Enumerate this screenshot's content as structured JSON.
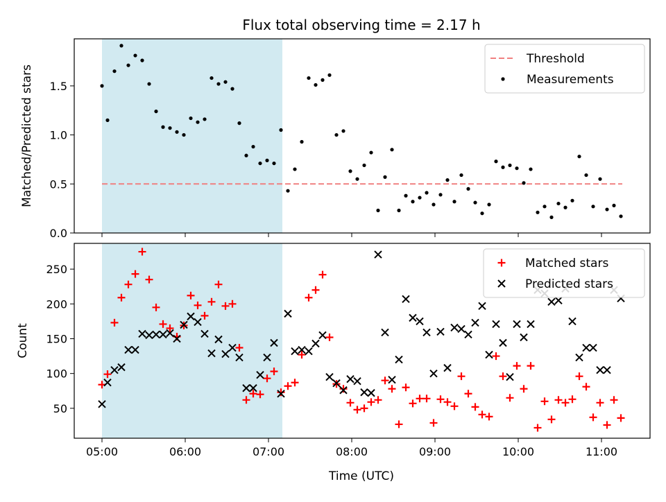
{
  "chart_data": {
    "title": "Flux total observing time = 2.17 h",
    "x_range": [
      "04:40",
      "11:35"
    ],
    "x_ticks": [
      "05:00",
      "06:00",
      "07:00",
      "08:00",
      "09:00",
      "10:00",
      "11:00"
    ],
    "xlabel": "Time (UTC)",
    "shaded_span": {
      "start": "05:00",
      "end": "07:10",
      "color": "#add8e6"
    },
    "panels": [
      {
        "type": "scatter",
        "ylabel": "Matched/Predicted stars",
        "ylim": [
          0,
          1.98
        ],
        "y_ticks": [
          "0.0",
          "0.5",
          "1.0",
          "1.5"
        ],
        "legend": {
          "placement": "top-right",
          "entries": [
            "Threshold",
            "Measurements"
          ]
        },
        "threshold": {
          "name": "Threshold",
          "value": 0.5,
          "x_start": "05:00",
          "x_end": "11:15",
          "color": "#f08080"
        },
        "series": [
          {
            "name": "Measurements",
            "color": "#000000",
            "marker": "dot",
            "points": [
              [
                "05:00",
                1.5
              ],
              [
                "05:04",
                1.15
              ],
              [
                "05:09",
                1.65
              ],
              [
                "05:14",
                1.91
              ],
              [
                "05:19",
                1.71
              ],
              [
                "05:24",
                1.81
              ],
              [
                "05:29",
                1.76
              ],
              [
                "05:34",
                1.52
              ],
              [
                "05:39",
                1.24
              ],
              [
                "05:44",
                1.08
              ],
              [
                "05:49",
                1.07
              ],
              [
                "05:54",
                1.03
              ],
              [
                "05:59",
                1.0
              ],
              [
                "06:04",
                1.17
              ],
              [
                "06:09",
                1.13
              ],
              [
                "06:14",
                1.16
              ],
              [
                "06:19",
                1.58
              ],
              [
                "06:24",
                1.52
              ],
              [
                "06:29",
                1.54
              ],
              [
                "06:34",
                1.47
              ],
              [
                "06:39",
                1.12
              ],
              [
                "06:44",
                0.79
              ],
              [
                "06:49",
                0.88
              ],
              [
                "06:54",
                0.71
              ],
              [
                "06:59",
                0.74
              ],
              [
                "07:04",
                0.71
              ],
              [
                "07:09",
                1.05
              ],
              [
                "07:14",
                0.43
              ],
              [
                "07:19",
                0.65
              ],
              [
                "07:24",
                0.93
              ],
              [
                "07:29",
                1.58
              ],
              [
                "07:34",
                1.51
              ],
              [
                "07:39",
                1.56
              ],
              [
                "07:44",
                1.61
              ],
              [
                "07:49",
                1.0
              ],
              [
                "07:54",
                1.04
              ],
              [
                "07:59",
                0.63
              ],
              [
                "08:04",
                0.55
              ],
              [
                "08:09",
                0.69
              ],
              [
                "08:14",
                0.82
              ],
              [
                "08:19",
                0.23
              ],
              [
                "08:24",
                0.57
              ],
              [
                "08:29",
                0.85
              ],
              [
                "08:34",
                0.23
              ],
              [
                "08:39",
                0.38
              ],
              [
                "08:44",
                0.32
              ],
              [
                "08:49",
                0.36
              ],
              [
                "08:54",
                0.41
              ],
              [
                "08:59",
                0.29
              ],
              [
                "09:04",
                0.39
              ],
              [
                "09:09",
                0.54
              ],
              [
                "09:14",
                0.32
              ],
              [
                "09:19",
                0.59
              ],
              [
                "09:24",
                0.45
              ],
              [
                "09:29",
                0.31
              ],
              [
                "09:34",
                0.2
              ],
              [
                "09:39",
                0.29
              ],
              [
                "09:44",
                0.73
              ],
              [
                "09:49",
                0.67
              ],
              [
                "09:54",
                0.69
              ],
              [
                "09:59",
                0.66
              ],
              [
                "10:04",
                0.51
              ],
              [
                "10:09",
                0.65
              ],
              [
                "10:14",
                0.21
              ],
              [
                "10:19",
                0.27
              ],
              [
                "10:24",
                0.16
              ],
              [
                "10:29",
                0.3
              ],
              [
                "10:34",
                0.26
              ],
              [
                "10:39",
                0.33
              ],
              [
                "10:44",
                0.78
              ],
              [
                "10:49",
                0.59
              ],
              [
                "10:54",
                0.27
              ],
              [
                "10:59",
                0.55
              ],
              [
                "11:04",
                0.24
              ],
              [
                "11:09",
                0.28
              ],
              [
                "11:14",
                0.17
              ]
            ]
          }
        ]
      },
      {
        "type": "scatter",
        "ylabel": "Count",
        "ylim": [
          7,
          287
        ],
        "y_ticks": [
          "50",
          "100",
          "150",
          "200",
          "250"
        ],
        "legend": {
          "placement": "top-right",
          "entries": [
            "Matched stars",
            "Predicted stars"
          ]
        },
        "series": [
          {
            "name": "Matched stars",
            "color": "#ff0000",
            "marker": "plus",
            "points": [
              [
                "05:00",
                84
              ],
              [
                "05:04",
                99
              ],
              [
                "05:09",
                173
              ],
              [
                "05:14",
                209
              ],
              [
                "05:19",
                228
              ],
              [
                "05:24",
                243
              ],
              [
                "05:29",
                275
              ],
              [
                "05:34",
                235
              ],
              [
                "05:39",
                195
              ],
              [
                "05:44",
                171
              ],
              [
                "05:49",
                165
              ],
              [
                "05:54",
                153
              ],
              [
                "05:59",
                169
              ],
              [
                "06:04",
                212
              ],
              [
                "06:09",
                198
              ],
              [
                "06:14",
                183
              ],
              [
                "06:19",
                203
              ],
              [
                "06:24",
                228
              ],
              [
                "06:29",
                197
              ],
              [
                "06:34",
                200
              ],
              [
                "06:39",
                137
              ],
              [
                "06:44",
                62
              ],
              [
                "06:49",
                71
              ],
              [
                "06:54",
                70
              ],
              [
                "06:59",
                93
              ],
              [
                "07:04",
                103
              ],
              [
                "07:09",
                73
              ],
              [
                "07:14",
                82
              ],
              [
                "07:19",
                87
              ],
              [
                "07:24",
                127
              ],
              [
                "07:29",
                209
              ],
              [
                "07:34",
                220
              ],
              [
                "07:39",
                242
              ],
              [
                "07:44",
                152
              ],
              [
                "07:49",
                85
              ],
              [
                "07:54",
                78
              ],
              [
                "07:59",
                58
              ],
              [
                "08:04",
                48
              ],
              [
                "08:09",
                50
              ],
              [
                "08:14",
                59
              ],
              [
                "08:19",
                62
              ],
              [
                "08:24",
                90
              ],
              [
                "08:29",
                78
              ],
              [
                "08:34",
                27
              ],
              [
                "08:39",
                80
              ],
              [
                "08:44",
                57
              ],
              [
                "08:49",
                64
              ],
              [
                "08:54",
                64
              ],
              [
                "08:59",
                29
              ],
              [
                "09:04",
                63
              ],
              [
                "09:09",
                59
              ],
              [
                "09:14",
                53
              ],
              [
                "09:19",
                96
              ],
              [
                "09:24",
                71
              ],
              [
                "09:29",
                52
              ],
              [
                "09:34",
                41
              ],
              [
                "09:39",
                38
              ],
              [
                "09:44",
                125
              ],
              [
                "09:49",
                96
              ],
              [
                "09:54",
                65
              ],
              [
                "09:59",
                111
              ],
              [
                "10:04",
                78
              ],
              [
                "10:09",
                111
              ],
              [
                "10:14",
                22
              ],
              [
                "10:19",
                60
              ],
              [
                "10:24",
                34
              ],
              [
                "10:29",
                62
              ],
              [
                "10:34",
                58
              ],
              [
                "10:39",
                63
              ],
              [
                "10:44",
                96
              ],
              [
                "10:49",
                81
              ],
              [
                "10:54",
                37
              ],
              [
                "10:59",
                58
              ],
              [
                "11:04",
                26
              ],
              [
                "11:09",
                62
              ],
              [
                "11:14",
                36
              ]
            ]
          },
          {
            "name": "Predicted stars",
            "color": "#000000",
            "marker": "x",
            "points": [
              [
                "05:00",
                56
              ],
              [
                "05:04",
                87
              ],
              [
                "05:09",
                105
              ],
              [
                "05:14",
                109
              ],
              [
                "05:19",
                134
              ],
              [
                "05:24",
                134
              ],
              [
                "05:29",
                157
              ],
              [
                "05:34",
                155
              ],
              [
                "05:39",
                156
              ],
              [
                "05:44",
                156
              ],
              [
                "05:49",
                158
              ],
              [
                "05:54",
                150
              ],
              [
                "05:59",
                170
              ],
              [
                "06:04",
                182
              ],
              [
                "06:09",
                174
              ],
              [
                "06:14",
                157
              ],
              [
                "06:19",
                129
              ],
              [
                "06:24",
                149
              ],
              [
                "06:29",
                128
              ],
              [
                "06:34",
                137
              ],
              [
                "06:39",
                123
              ],
              [
                "06:44",
                79
              ],
              [
                "06:49",
                79
              ],
              [
                "06:54",
                98
              ],
              [
                "06:59",
                123
              ],
              [
                "07:04",
                144
              ],
              [
                "07:09",
                71
              ],
              [
                "07:14",
                186
              ],
              [
                "07:19",
                132
              ],
              [
                "07:24",
                134
              ],
              [
                "07:29",
                132
              ],
              [
                "07:34",
                143
              ],
              [
                "07:39",
                155
              ],
              [
                "07:44",
                95
              ],
              [
                "07:49",
                86
              ],
              [
                "07:54",
                76
              ],
              [
                "07:59",
                92
              ],
              [
                "08:04",
                89
              ],
              [
                "08:09",
                73
              ],
              [
                "08:14",
                72
              ],
              [
                "08:19",
                271
              ],
              [
                "08:24",
                159
              ],
              [
                "08:29",
                91
              ],
              [
                "08:34",
                120
              ],
              [
                "08:39",
                207
              ],
              [
                "08:44",
                180
              ],
              [
                "08:49",
                175
              ],
              [
                "08:54",
                159
              ],
              [
                "08:59",
                100
              ],
              [
                "09:04",
                160
              ],
              [
                "09:09",
                108
              ],
              [
                "09:14",
                166
              ],
              [
                "09:19",
                164
              ],
              [
                "09:24",
                156
              ],
              [
                "09:29",
                173
              ],
              [
                "09:34",
                197
              ],
              [
                "09:39",
                127
              ],
              [
                "09:44",
                171
              ],
              [
                "09:49",
                144
              ],
              [
                "09:54",
                95
              ],
              [
                "09:59",
                171
              ],
              [
                "10:04",
                152
              ],
              [
                "10:09",
                171
              ],
              [
                "10:14",
                220
              ],
              [
                "10:19",
                215
              ],
              [
                "10:24",
                203
              ],
              [
                "10:29",
                205
              ],
              [
                "10:34",
                222
              ],
              [
                "10:39",
                175
              ],
              [
                "10:44",
                123
              ],
              [
                "10:49",
                137
              ],
              [
                "10:54",
                137
              ],
              [
                "10:59",
                105
              ],
              [
                "11:04",
                105
              ],
              [
                "11:09",
                220
              ],
              [
                "11:14",
                208
              ]
            ]
          }
        ]
      }
    ]
  }
}
